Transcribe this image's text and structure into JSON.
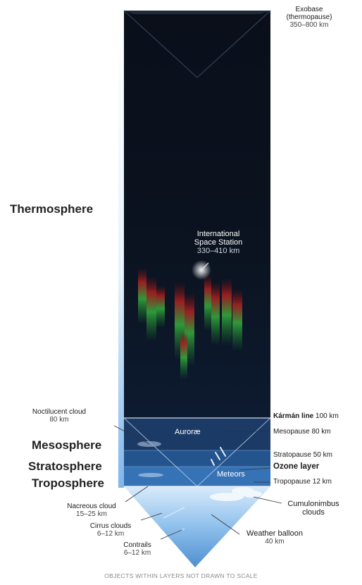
{
  "layers": {
    "thermosphere": "Thermosphere",
    "mesosphere": "Mesosphere",
    "stratosphere": "Stratosphere",
    "troposphere": "Troposphere"
  },
  "labels": {
    "exobase": {
      "name": "Exobase",
      "note": "(thermopause)",
      "alt": "350–800 km"
    },
    "iss": {
      "line1": "International",
      "line2": "Space Station",
      "alt": "330–410 km"
    },
    "noctilucent": {
      "name": "Noctilucent cloud",
      "alt": "80 km"
    },
    "aurorae": "Auroræ",
    "meteors": "Meteors",
    "karman": {
      "name": "Kármán line",
      "alt": "100 km"
    },
    "mesopause": {
      "name": "Mesopause",
      "alt": "80 km"
    },
    "stratopause": {
      "name": "Stratopause",
      "alt": "50 km"
    },
    "ozone": "Ozone layer",
    "tropopause": {
      "name": "Tropopause",
      "alt": "12 km"
    },
    "nacreous": {
      "name": "Nacreous cloud",
      "alt": "15–25 km"
    },
    "cirrus": {
      "name": "Cirrus clouds",
      "alt": "6–12 km"
    },
    "contrails": {
      "name": "Contrails",
      "alt": "6–12 km"
    },
    "weather_balloon": {
      "name": "Weather balloon",
      "alt": "40 km"
    },
    "cumulonimbus": {
      "line1": "Cumulonimbus",
      "line2": "clouds"
    }
  },
  "footer": "OBJECTS WITHIN LAYERS NOT DRAWN TO SCALE"
}
